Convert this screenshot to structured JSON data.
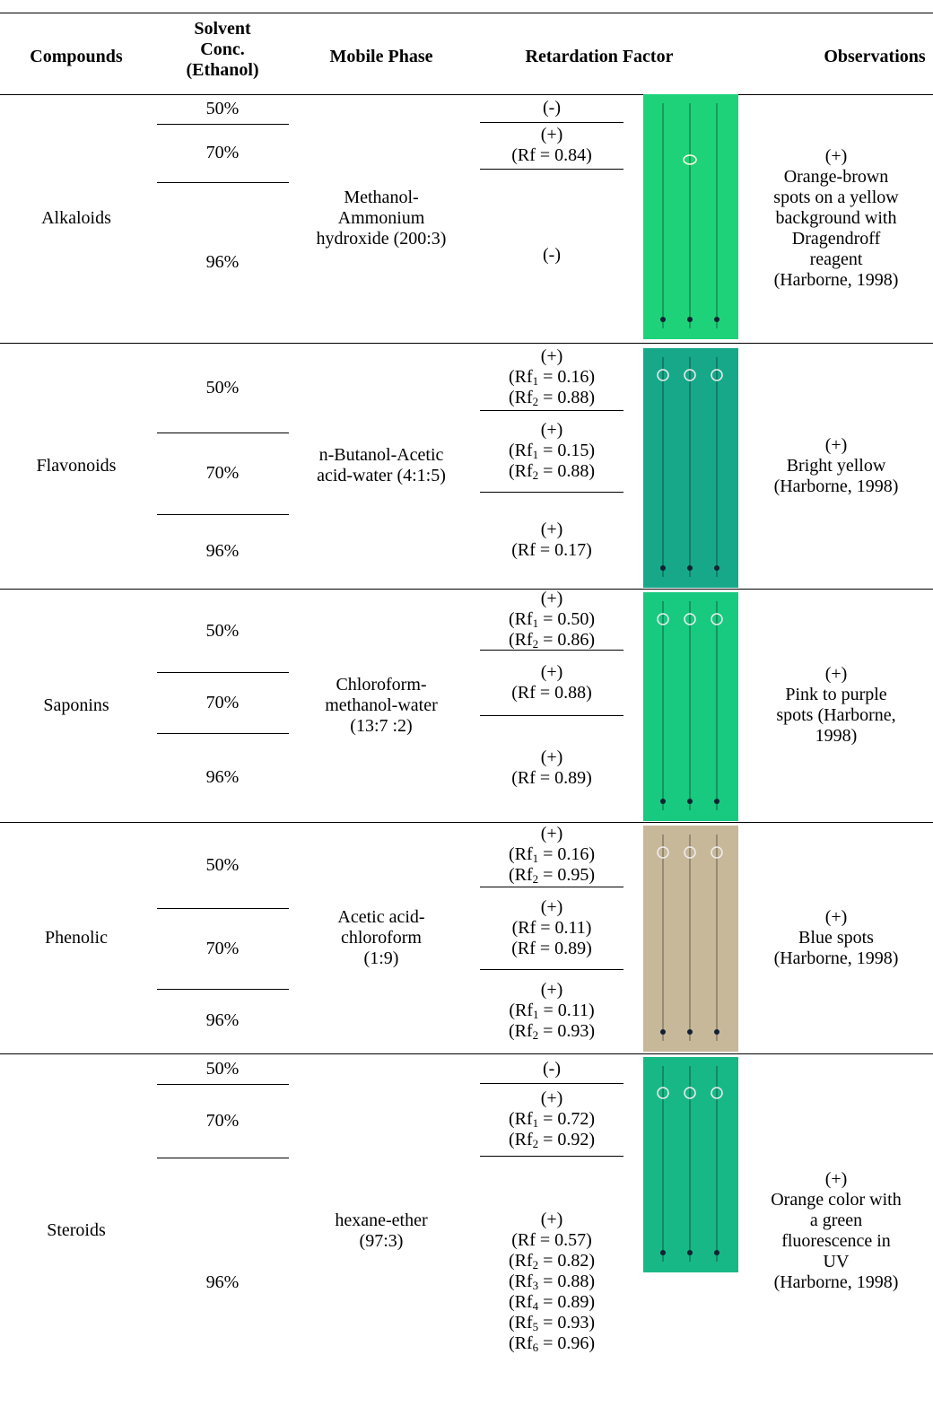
{
  "header": {
    "compounds": "Compounds",
    "solvent": [
      "Solvent",
      "Conc.",
      "(Ethanol)"
    ],
    "mobile_phase": "Mobile Phase",
    "retardation_factor": "Retardation Factor",
    "observations": "Observations"
  },
  "rows": [
    {
      "compound": "Alkaloids",
      "mobile_phase": [
        "Methanol-",
        "Ammonium",
        "hydroxide (200:3)"
      ],
      "observations": [
        "(+)",
        "Orange-brown",
        "spots on a yellow",
        "background with",
        "Dragendroff",
        "reagent",
        "(Harborne, 1998)"
      ],
      "concentrations": [
        {
          "conc": "50%",
          "rf": [
            "(-)"
          ]
        },
        {
          "conc": "70%",
          "rf": [
            "(+)",
            "(Rf = 0.84)"
          ]
        },
        {
          "conc": "96%",
          "rf": [
            "(-)"
          ]
        }
      ]
    },
    {
      "compound": "Flavonoids",
      "mobile_phase": [
        "n-Butanol-Acetic",
        "acid-water (4:1:5)"
      ],
      "observations": [
        "(+)",
        "Bright yellow",
        "(Harborne, 1998)"
      ],
      "concentrations": [
        {
          "conc": "50%",
          "rf": [
            "(+)",
            {
              "pre": "(Rf",
              "sub": "1",
              "post": " = 0.16)"
            },
            {
              "pre": "(Rf",
              "sub": "2",
              "post": " = 0.88)"
            }
          ]
        },
        {
          "conc": "70%",
          "rf": [
            "(+)",
            {
              "pre": "(Rf",
              "sub": "1",
              "post": " = 0.15)"
            },
            {
              "pre": "(Rf",
              "sub": "2",
              "post": " = 0.88)"
            }
          ]
        },
        {
          "conc": "96%",
          "rf": [
            "(+)",
            "(Rf = 0.17)"
          ]
        }
      ]
    },
    {
      "compound": "Saponins",
      "mobile_phase": [
        "Chloroform-",
        "methanol-water",
        "(13:7 :2)"
      ],
      "observations": [
        "(+)",
        "Pink to purple",
        "spots (Harborne,",
        "1998)"
      ],
      "concentrations": [
        {
          "conc": "50%",
          "rf": [
            "(+)",
            {
              "pre": "(Rf",
              "sub": "1",
              "post": " = 0.50)"
            },
            {
              "pre": "(Rf",
              "sub": "2",
              "post": " = 0.86)"
            }
          ]
        },
        {
          "conc": "70%",
          "rf": [
            "(+)",
            "(Rf = 0.88)"
          ]
        },
        {
          "conc": "96%",
          "rf": [
            "(+)",
            "(Rf = 0.89)"
          ]
        }
      ]
    },
    {
      "compound": "Phenolic",
      "mobile_phase": [
        "Acetic acid-",
        "chloroform",
        "(1:9)"
      ],
      "observations": [
        "(+)",
        "Blue spots",
        "(Harborne, 1998)"
      ],
      "concentrations": [
        {
          "conc": "50%",
          "rf": [
            "(+)",
            {
              "pre": "(Rf",
              "sub": "1",
              "post": " = 0.16)"
            },
            {
              "pre": "(Rf",
              "sub": "2",
              "post": " = 0.95)"
            }
          ]
        },
        {
          "conc": "70%",
          "rf": [
            "(+)",
            "(Rf = 0.11)",
            "(Rf = 0.89)"
          ]
        },
        {
          "conc": "96%",
          "rf": [
            "(+)",
            {
              "pre": "(Rf",
              "sub": "1",
              "post": " = 0.11)"
            },
            {
              "pre": "(Rf",
              "sub": "2",
              "post": " = 0.93)"
            }
          ]
        }
      ]
    },
    {
      "compound": "Steroids",
      "mobile_phase": [
        "hexane-ether",
        "(97:3)"
      ],
      "observations": [
        "(+)",
        "Orange color with",
        "a green",
        "fluorescence in",
        "UV",
        "(Harborne, 1998)"
      ],
      "concentrations": [
        {
          "conc": "50%",
          "rf": [
            "(-)"
          ]
        },
        {
          "conc": "70%",
          "rf": [
            "(+)",
            {
              "pre": "(Rf",
              "sub": "1",
              "post": " = 0.72)"
            },
            {
              "pre": "(Rf",
              "sub": "2",
              "post": " = 0.92)"
            }
          ]
        },
        {
          "conc": "96%",
          "rf": [
            "(+)",
            "(Rf = 0.57)",
            {
              "pre": "(Rf",
              "sub": "2",
              "post": " = 0.82)"
            },
            {
              "pre": "(Rf",
              "sub": "3",
              "post": " = 0.88)"
            },
            {
              "pre": "(Rf",
              "sub": "4",
              "post": " = 0.89)"
            },
            {
              "pre": "(Rf",
              "sub": "5",
              "post": " = 0.93)"
            },
            {
              "pre": "(Rf",
              "sub": "6",
              "post": " = 0.96)"
            }
          ]
        }
      ]
    }
  ]
}
